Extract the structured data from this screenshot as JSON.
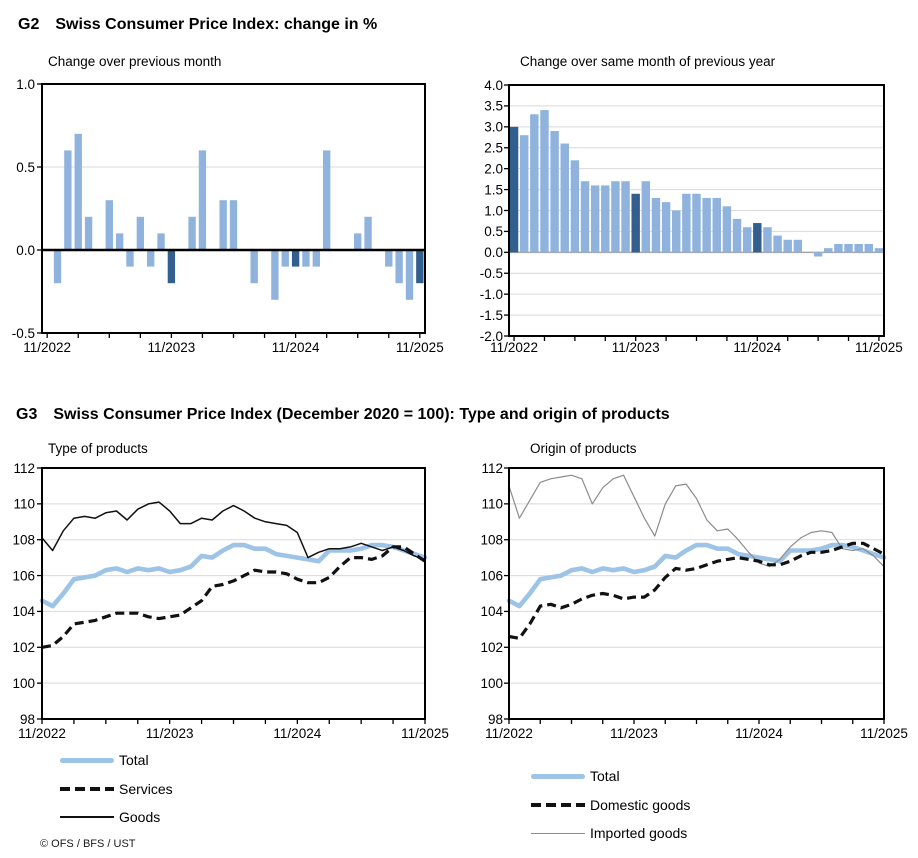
{
  "page": {
    "g2": {
      "id": "G2",
      "title": "Swiss Consumer Price Index: change in %"
    },
    "g3": {
      "id": "G3",
      "title": "Swiss Consumer Price Index (December 2020 = 100): Type and origin of products"
    },
    "footer": "© OFS / BFS / UST"
  },
  "colors": {
    "bar_light": "#8FB3DC",
    "bar_dark": "#335F8E",
    "total_line": "#9DC3E6",
    "black_line": "#111111",
    "imported_line": "#8C8C8C",
    "grid": "#D9D9D9",
    "zero_gray": "#A6A6A6",
    "frame": "#000000"
  },
  "chart_data": [
    {
      "key": "mom",
      "type": "bar",
      "title": "Change over previous month",
      "categories": [
        "11/2022",
        "12/2022",
        "1/2023",
        "2/2023",
        "3/2023",
        "4/2023",
        "5/2023",
        "6/2023",
        "7/2023",
        "8/2023",
        "9/2023",
        "10/2023",
        "11/2023",
        "12/2023",
        "1/2024",
        "2/2024",
        "3/2024",
        "4/2024",
        "5/2024",
        "6/2024",
        "7/2024",
        "8/2024",
        "9/2024",
        "10/2024",
        "11/2024",
        "12/2024",
        "1/2025",
        "2/2025",
        "3/2025",
        "4/2025",
        "5/2025",
        "6/2025",
        "7/2025",
        "8/2025",
        "9/2025",
        "10/2025",
        "11/2025"
      ],
      "values": [
        0.0,
        -0.2,
        0.6,
        0.7,
        0.2,
        0.0,
        0.3,
        0.1,
        -0.1,
        0.2,
        -0.1,
        0.1,
        -0.2,
        0.0,
        0.2,
        0.6,
        0.0,
        0.3,
        0.3,
        0.0,
        -0.2,
        0.0,
        -0.3,
        -0.1,
        -0.1,
        -0.1,
        -0.1,
        0.6,
        0.0,
        0.0,
        0.1,
        0.2,
        0.0,
        -0.1,
        -0.2,
        -0.3,
        -0.2
      ],
      "highlight_indices": [
        12,
        24,
        36
      ],
      "highlight_meaning": "November of each year shown in dark blue",
      "ylim": [
        -0.5,
        1.0
      ],
      "zero_line": "black",
      "yticks": [
        {
          "v": 1.0,
          "label": "1.0"
        },
        {
          "v": 0.5,
          "label": "0.5",
          "grid": true
        },
        {
          "v": 0.0,
          "label": "0.0"
        },
        {
          "v": -0.5,
          "label": "-0.5"
        }
      ],
      "x_label_indices": [
        0,
        12,
        24,
        36
      ]
    },
    {
      "key": "yoy",
      "type": "bar",
      "title": "Change over same month of previous year",
      "categories": [
        "11/2022",
        "12/2022",
        "1/2023",
        "2/2023",
        "3/2023",
        "4/2023",
        "5/2023",
        "6/2023",
        "7/2023",
        "8/2023",
        "9/2023",
        "10/2023",
        "11/2023",
        "12/2023",
        "1/2024",
        "2/2024",
        "3/2024",
        "4/2024",
        "5/2024",
        "6/2024",
        "7/2024",
        "8/2024",
        "9/2024",
        "10/2024",
        "11/2024",
        "12/2024",
        "1/2025",
        "2/2025",
        "3/2025",
        "4/2025",
        "5/2025",
        "6/2025",
        "7/2025",
        "8/2025",
        "9/2025",
        "10/2025",
        "11/2025"
      ],
      "values": [
        3.0,
        2.8,
        3.3,
        3.4,
        2.9,
        2.6,
        2.2,
        1.7,
        1.6,
        1.6,
        1.7,
        1.7,
        1.4,
        1.7,
        1.3,
        1.2,
        1.0,
        1.4,
        1.4,
        1.3,
        1.3,
        1.1,
        0.8,
        0.6,
        0.7,
        0.6,
        0.4,
        0.3,
        0.3,
        0.0,
        -0.1,
        0.1,
        0.2,
        0.2,
        0.2,
        0.2,
        0.1
      ],
      "highlight_indices": [
        0,
        12,
        24
      ],
      "highlight_meaning": "November of each year shown in dark blue",
      "ylim": [
        -2.0,
        4.0
      ],
      "zero_line": "gray",
      "yticks": [
        {
          "v": 4.0,
          "label": "4.0"
        },
        {
          "v": 3.5,
          "label": "3.5",
          "grid": true
        },
        {
          "v": 3.0,
          "label": "3.0",
          "grid": true
        },
        {
          "v": 2.5,
          "label": "2.5",
          "grid": true
        },
        {
          "v": 2.0,
          "label": "2.0",
          "grid": true
        },
        {
          "v": 1.5,
          "label": "1.5",
          "grid": true
        },
        {
          "v": 1.0,
          "label": "1.0",
          "grid": true
        },
        {
          "v": 0.5,
          "label": "0.5",
          "grid": true
        },
        {
          "v": 0.0,
          "label": "0.0"
        },
        {
          "v": -0.5,
          "label": "-0.5",
          "grid": true
        },
        {
          "v": -1.0,
          "label": "-1.0",
          "grid": true
        },
        {
          "v": -1.5,
          "label": "-1.5",
          "grid": true
        },
        {
          "v": -2.0,
          "label": "-2.0"
        }
      ],
      "x_label_indices": [
        0,
        12,
        24,
        36
      ]
    },
    {
      "key": "type",
      "type": "line",
      "title": "Type of products",
      "categories": [
        "11/2022",
        "12/2022",
        "1/2023",
        "2/2023",
        "3/2023",
        "4/2023",
        "5/2023",
        "6/2023",
        "7/2023",
        "8/2023",
        "9/2023",
        "10/2023",
        "11/2023",
        "12/2023",
        "1/2024",
        "2/2024",
        "3/2024",
        "4/2024",
        "5/2024",
        "6/2024",
        "7/2024",
        "8/2024",
        "9/2024",
        "10/2024",
        "11/2024",
        "12/2024",
        "1/2025",
        "2/2025",
        "3/2025",
        "4/2025",
        "5/2025",
        "6/2025",
        "7/2025",
        "8/2025",
        "9/2025",
        "10/2025",
        "11/2025"
      ],
      "series": [
        {
          "name": "Total",
          "style": "total",
          "values": [
            104.6,
            104.3,
            105.0,
            105.8,
            105.9,
            106.0,
            106.3,
            106.4,
            106.2,
            106.4,
            106.3,
            106.4,
            106.2,
            106.3,
            106.5,
            107.1,
            107.0,
            107.4,
            107.7,
            107.7,
            107.5,
            107.5,
            107.2,
            107.1,
            107.0,
            106.9,
            106.8,
            107.4,
            107.4,
            107.4,
            107.5,
            107.7,
            107.7,
            107.6,
            107.4,
            107.2,
            107.0
          ]
        },
        {
          "name": "Goods",
          "style": "goods",
          "values": [
            108.1,
            107.4,
            108.5,
            109.2,
            109.3,
            109.2,
            109.5,
            109.6,
            109.1,
            109.7,
            110.0,
            110.1,
            109.6,
            108.9,
            108.9,
            109.2,
            109.1,
            109.6,
            109.9,
            109.6,
            109.2,
            109.0,
            108.9,
            108.8,
            108.4,
            107.0,
            107.3,
            107.5,
            107.5,
            107.6,
            107.8,
            107.6,
            107.4,
            107.6,
            107.4,
            107.1,
            106.9
          ]
        },
        {
          "name": "Services",
          "style": "services",
          "values": [
            102.0,
            102.1,
            102.6,
            103.3,
            103.4,
            103.5,
            103.7,
            103.9,
            103.9,
            103.9,
            103.7,
            103.6,
            103.7,
            103.8,
            104.2,
            104.6,
            105.4,
            105.5,
            105.7,
            106.0,
            106.3,
            106.2,
            106.2,
            106.1,
            105.8,
            105.6,
            105.6,
            105.9,
            106.5,
            107.0,
            107.0,
            106.9,
            107.1,
            107.6,
            107.6,
            107.2,
            106.8
          ]
        }
      ],
      "legend": [
        {
          "label": "Total",
          "style": "total"
        },
        {
          "label": "Services",
          "style": "services"
        },
        {
          "label": "Goods",
          "style": "goods"
        }
      ],
      "ylim": [
        98,
        112
      ],
      "yticks": [
        {
          "v": 112,
          "label": "112"
        },
        {
          "v": 110,
          "label": "110",
          "grid": true
        },
        {
          "v": 108,
          "label": "108",
          "grid": true
        },
        {
          "v": 106,
          "label": "106",
          "grid": true
        },
        {
          "v": 104,
          "label": "104",
          "grid": true
        },
        {
          "v": 102,
          "label": "102",
          "grid": true
        },
        {
          "v": 100,
          "label": "100",
          "grid": true
        },
        {
          "v": 98,
          "label": "98"
        }
      ],
      "x_label_indices": [
        0,
        12,
        24,
        36
      ]
    },
    {
      "key": "origin",
      "type": "line",
      "title": "Origin of products",
      "categories": [
        "11/2022",
        "12/2022",
        "1/2023",
        "2/2023",
        "3/2023",
        "4/2023",
        "5/2023",
        "6/2023",
        "7/2023",
        "8/2023",
        "9/2023",
        "10/2023",
        "11/2023",
        "12/2023",
        "1/2024",
        "2/2024",
        "3/2024",
        "4/2024",
        "5/2024",
        "6/2024",
        "7/2024",
        "8/2024",
        "9/2024",
        "10/2024",
        "11/2024",
        "12/2024",
        "1/2025",
        "2/2025",
        "3/2025",
        "4/2025",
        "5/2025",
        "6/2025",
        "7/2025",
        "8/2025",
        "9/2025",
        "10/2025",
        "11/2025"
      ],
      "series": [
        {
          "name": "Total",
          "style": "total",
          "values": [
            104.6,
            104.3,
            105.0,
            105.8,
            105.9,
            106.0,
            106.3,
            106.4,
            106.2,
            106.4,
            106.3,
            106.4,
            106.2,
            106.3,
            106.5,
            107.1,
            107.0,
            107.4,
            107.7,
            107.7,
            107.5,
            107.5,
            107.2,
            107.1,
            107.0,
            106.9,
            106.8,
            107.4,
            107.4,
            107.4,
            107.5,
            107.7,
            107.7,
            107.6,
            107.4,
            107.2,
            107.0
          ]
        },
        {
          "name": "Imported goods",
          "style": "imported",
          "values": [
            111.0,
            109.2,
            110.2,
            111.2,
            111.4,
            111.5,
            111.6,
            111.4,
            110.0,
            110.9,
            111.4,
            111.6,
            110.4,
            109.2,
            108.2,
            110.0,
            111.0,
            111.1,
            110.3,
            109.1,
            108.5,
            108.6,
            108.0,
            107.3,
            106.7,
            106.5,
            106.9,
            107.6,
            108.1,
            108.4,
            108.5,
            108.4,
            107.5,
            107.4,
            107.5,
            107.1,
            106.5
          ]
        },
        {
          "name": "Domestic goods",
          "style": "domestic",
          "values": [
            102.6,
            102.5,
            103.3,
            104.3,
            104.4,
            104.2,
            104.4,
            104.7,
            104.9,
            105.0,
            104.9,
            104.7,
            104.8,
            104.8,
            105.2,
            105.9,
            106.4,
            106.3,
            106.4,
            106.6,
            106.8,
            106.9,
            107.0,
            106.9,
            106.8,
            106.6,
            106.6,
            106.8,
            107.1,
            107.3,
            107.3,
            107.4,
            107.6,
            107.8,
            107.8,
            107.5,
            107.2
          ]
        }
      ],
      "legend": [
        {
          "label": "Total",
          "style": "total"
        },
        {
          "label": "Domestic goods",
          "style": "domestic"
        },
        {
          "label": "Imported goods",
          "style": "imported"
        }
      ],
      "ylim": [
        98,
        112
      ],
      "yticks": [
        {
          "v": 112,
          "label": "112"
        },
        {
          "v": 110,
          "label": "110",
          "grid": true
        },
        {
          "v": 108,
          "label": "108",
          "grid": true
        },
        {
          "v": 106,
          "label": "106",
          "grid": true
        },
        {
          "v": 104,
          "label": "104",
          "grid": true
        },
        {
          "v": 102,
          "label": "102",
          "grid": true
        },
        {
          "v": 100,
          "label": "100",
          "grid": true
        },
        {
          "v": 98,
          "label": "98"
        }
      ],
      "x_label_indices": [
        0,
        12,
        24,
        36
      ]
    }
  ]
}
